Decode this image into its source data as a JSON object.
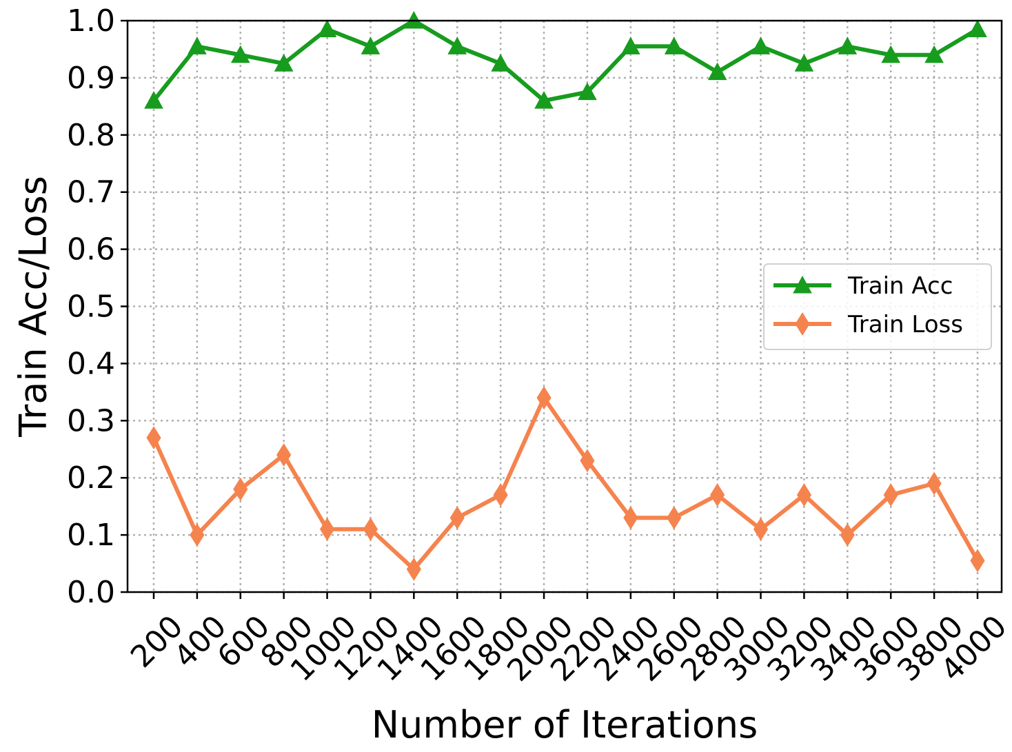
{
  "chart_data": {
    "type": "line",
    "xlabel": "Number of Iterations",
    "ylabel": "Train Acc/Loss",
    "ylim": [
      0.0,
      1.0
    ],
    "yticks": [
      "0.0",
      "0.1",
      "0.2",
      "0.3",
      "0.4",
      "0.5",
      "0.6",
      "0.7",
      "0.8",
      "0.9",
      "1.0"
    ],
    "categories": [
      "200",
      "400",
      "600",
      "800",
      "1000",
      "1200",
      "1400",
      "1600",
      "1800",
      "2000",
      "2200",
      "2400",
      "2600",
      "2800",
      "3000",
      "3200",
      "3400",
      "3600",
      "3800",
      "4000"
    ],
    "grid": true,
    "legend_position": "center-right",
    "series": [
      {
        "name": "Train Acc",
        "color": "#179c1e",
        "marker": "triangle",
        "values": [
          0.86,
          0.955,
          0.94,
          0.925,
          0.985,
          0.955,
          1.0,
          0.955,
          0.925,
          0.86,
          0.875,
          0.955,
          0.955,
          0.91,
          0.955,
          0.925,
          0.955,
          0.94,
          0.94,
          0.985
        ]
      },
      {
        "name": "Train Loss",
        "color": "#f5834e",
        "marker": "diamond",
        "values": [
          0.27,
          0.1,
          0.18,
          0.24,
          0.11,
          0.11,
          0.04,
          0.13,
          0.17,
          0.34,
          0.23,
          0.13,
          0.13,
          0.17,
          0.11,
          0.17,
          0.1,
          0.17,
          0.19,
          0.055
        ]
      }
    ]
  }
}
